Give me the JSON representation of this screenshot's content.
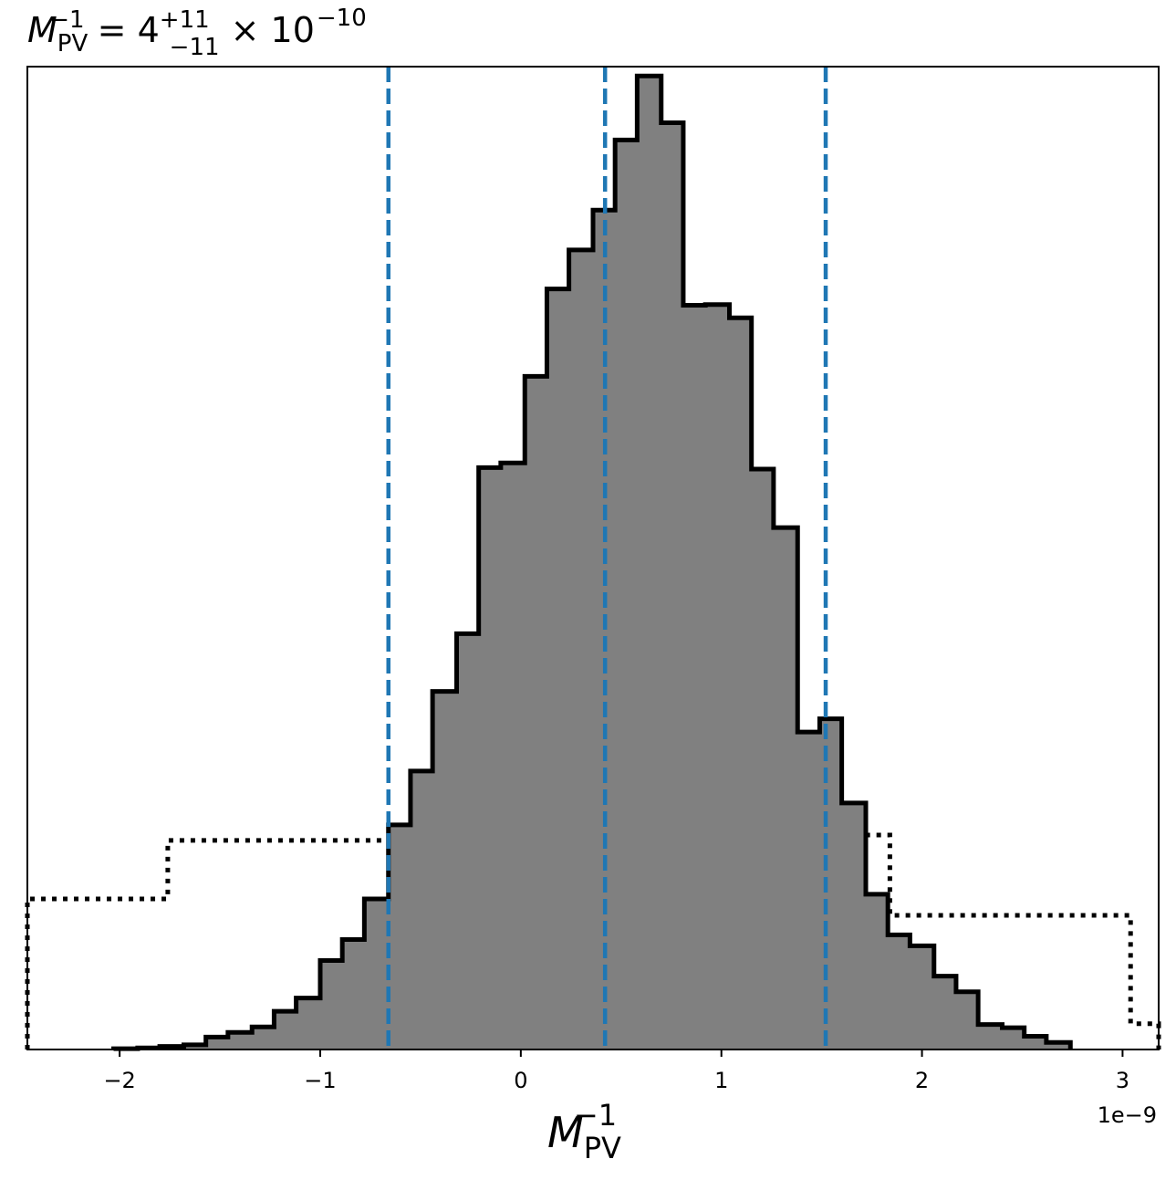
{
  "chart_data": {
    "type": "histogram",
    "title": {
      "symbol": "M",
      "subscript": "PV",
      "superscript": "−1",
      "equals": " = 4",
      "upper_err": "+11",
      "lower_err": "−11",
      "times": " × 10",
      "exponent": "−10"
    },
    "xlabel": {
      "symbol": "M",
      "subscript": "PV",
      "superscript": "−1"
    },
    "x_offset_label": "1e−9",
    "x_scale": 1e-09,
    "xlim": [
      -2.46,
      3.18
    ],
    "ylim": [
      0,
      1.0
    ],
    "x_ticks": [
      {
        "value": -2,
        "label": "−2"
      },
      {
        "value": -1,
        "label": "−1"
      },
      {
        "value": 0,
        "label": "0"
      },
      {
        "value": 1,
        "label": "1"
      },
      {
        "value": 2,
        "label": "2"
      },
      {
        "value": 3,
        "label": "3"
      }
    ],
    "posterior_histogram": {
      "fill_color": "#808080",
      "edge_color": "#000000",
      "bin_edges": [
        -2.03,
        -1.91,
        -1.8,
        -1.68,
        -1.57,
        -1.46,
        -1.34,
        -1.23,
        -1.12,
        -1.0,
        -0.89,
        -0.78,
        -0.66,
        -0.55,
        -0.44,
        -0.32,
        -0.21,
        -0.1,
        0.02,
        0.13,
        0.24,
        0.36,
        0.47,
        0.58,
        0.7,
        0.81,
        0.92,
        1.04,
        1.15,
        1.26,
        1.38,
        1.49,
        1.6,
        1.72,
        1.83,
        1.94,
        2.06,
        2.17,
        2.28,
        2.4,
        2.51,
        2.62,
        2.74
      ],
      "heights": [
        0.001,
        0.002,
        0.004,
        0.006,
        0.016,
        0.022,
        0.029,
        0.049,
        0.066,
        0.114,
        0.141,
        0.193,
        0.288,
        0.357,
        0.459,
        0.533,
        0.746,
        0.752,
        0.863,
        0.975,
        1.025,
        1.076,
        1.166,
        1.248,
        1.188,
        0.954,
        0.955,
        0.938,
        0.744,
        0.669,
        0.407,
        0.424,
        0.316,
        0.199,
        0.147,
        0.133,
        0.094,
        0.074,
        0.032,
        0.028,
        0.017,
        0.009
      ],
      "ymax": 1.26
    },
    "prior_histogram": {
      "line_style": "dotted",
      "edge_color": "#000000",
      "bin_edges": [
        -2.46,
        -1.76,
        -0.56,
        0.64,
        1.84,
        3.04,
        3.18
      ],
      "heights": [
        0.193,
        0.268,
        0.281,
        0.275,
        0.172,
        0.033
      ],
      "ymax": 1.26
    },
    "vlines": {
      "color": "#1f77b4",
      "line_style": "dashed",
      "values": [
        -0.66,
        0.42,
        1.52
      ]
    },
    "grid": false
  }
}
